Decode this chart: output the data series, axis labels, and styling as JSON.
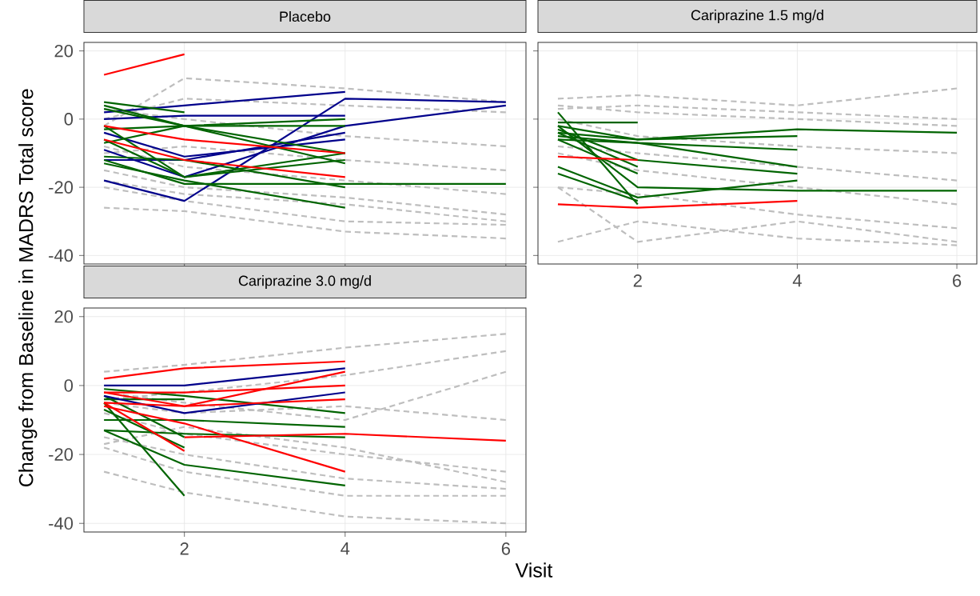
{
  "chart_data": [
    {
      "type": "line",
      "title": "Placebo",
      "x": [
        1,
        2,
        4,
        6
      ],
      "xlim": [
        0.75,
        6.25
      ],
      "ylim": [
        -42.5,
        22.5
      ],
      "xticks": [
        2,
        4,
        6
      ],
      "yticks": [
        -40,
        -20,
        0,
        20
      ],
      "tick_labels": "y",
      "grid": true,
      "marker": "none",
      "line_style": "solid",
      "series": [
        {
          "color": "#bebebe",
          "line_style": "dashed",
          "values": [
            -26,
            -27,
            -33,
            -35
          ]
        },
        {
          "color": "#bebebe",
          "line_style": "dashed",
          "values": [
            -20,
            -24,
            -30,
            -31
          ]
        },
        {
          "color": "#bebebe",
          "line_style": "dashed",
          "values": [
            -2,
            12,
            9,
            5
          ]
        },
        {
          "color": "#bebebe",
          "line_style": "dashed",
          "values": [
            0,
            6,
            4,
            2
          ]
        },
        {
          "color": "#bebebe",
          "line_style": "dashed",
          "values": [
            -15,
            -20,
            -23,
            -28
          ]
        },
        {
          "color": "#bebebe",
          "line_style": "dashed",
          "values": [
            -10,
            -8,
            -12,
            -15
          ]
        },
        {
          "color": "#bebebe",
          "line_style": "dashed",
          "values": [
            3,
            0,
            -5,
            -8
          ]
        },
        {
          "color": "#bebebe",
          "line_style": "dashed",
          "values": [
            -8,
            -14,
            -18,
            -22
          ]
        },
        {
          "color": "#bebebe",
          "line_style": "dashed",
          "values": [
            -18,
            -22,
            -25,
            -30
          ]
        },
        {
          "color": "#00008b",
          "values": [
            2,
            4,
            8,
            null
          ]
        },
        {
          "color": "#00008b",
          "values": [
            0,
            1,
            1,
            null
          ]
        },
        {
          "color": "#00008b",
          "values": [
            -18,
            -24,
            6,
            5
          ]
        },
        {
          "color": "#00008b",
          "values": [
            -4,
            -11,
            -6,
            null
          ]
        },
        {
          "color": "#00008b",
          "values": [
            -9,
            -17,
            -2,
            4
          ]
        },
        {
          "color": "#00008b",
          "values": [
            -12,
            -12,
            -4,
            null
          ]
        },
        {
          "color": "#006400",
          "values": [
            5,
            2,
            null,
            null
          ]
        },
        {
          "color": "#006400",
          "values": [
            4,
            -2,
            -10,
            null
          ]
        },
        {
          "color": "#006400",
          "values": [
            3,
            -2,
            0,
            null
          ]
        },
        {
          "color": "#006400",
          "values": [
            -3,
            -2,
            -2,
            null
          ]
        },
        {
          "color": "#006400",
          "values": [
            -7,
            -2,
            -13,
            null
          ]
        },
        {
          "color": "#006400",
          "values": [
            -2,
            -17,
            -10,
            null
          ]
        },
        {
          "color": "#006400",
          "values": [
            -12,
            -19,
            -19,
            -19
          ]
        },
        {
          "color": "#006400",
          "values": [
            -13,
            -18,
            -26,
            null
          ]
        },
        {
          "color": "#006400",
          "values": [
            -11,
            -12,
            -20,
            null
          ]
        },
        {
          "color": "#006400",
          "values": [
            -6,
            -17,
            -12,
            null
          ]
        },
        {
          "color": "#ff0000",
          "values": [
            13,
            19,
            null,
            null
          ]
        },
        {
          "color": "#ff0000",
          "values": [
            -2,
            -6,
            -10,
            null
          ]
        },
        {
          "color": "#ff0000",
          "values": [
            -6,
            -12,
            -17,
            null
          ]
        }
      ]
    },
    {
      "type": "line",
      "title": "Cariprazine 1.5 mg/d",
      "x": [
        1,
        2,
        4,
        6
      ],
      "xlim": [
        0.75,
        6.25
      ],
      "ylim": [
        -42.5,
        22.5
      ],
      "xticks": [
        2,
        4,
        6
      ],
      "yticks": [
        -40,
        -20,
        0,
        20
      ],
      "tick_labels": "x",
      "grid": true,
      "marker": "none",
      "line_style": "solid",
      "series": [
        {
          "color": "#bebebe",
          "line_style": "dashed",
          "values": [
            6,
            7,
            4,
            9
          ]
        },
        {
          "color": "#bebebe",
          "line_style": "dashed",
          "values": [
            -36,
            -30,
            -35,
            -37
          ]
        },
        {
          "color": "#bebebe",
          "line_style": "dashed",
          "values": [
            -20,
            -36,
            -30,
            -36
          ]
        },
        {
          "color": "#bebebe",
          "line_style": "dashed",
          "values": [
            4,
            2,
            0,
            -2
          ]
        },
        {
          "color": "#bebebe",
          "line_style": "dashed",
          "values": [
            0,
            -5,
            -8,
            -10
          ]
        },
        {
          "color": "#bebebe",
          "line_style": "dashed",
          "values": [
            -10,
            -15,
            -20,
            -25
          ]
        },
        {
          "color": "#bebebe",
          "line_style": "dashed",
          "values": [
            -20,
            -22,
            -28,
            -32
          ]
        },
        {
          "color": "#bebebe",
          "line_style": "dashed",
          "values": [
            -8,
            -10,
            -14,
            -18
          ]
        },
        {
          "color": "#bebebe",
          "line_style": "dashed",
          "values": [
            3,
            4,
            2,
            0
          ]
        },
        {
          "color": "#006400",
          "values": [
            -1,
            -1,
            null,
            null
          ]
        },
        {
          "color": "#006400",
          "values": [
            2,
            -25,
            null,
            null
          ]
        },
        {
          "color": "#006400",
          "values": [
            -14,
            -23,
            -18,
            null
          ]
        },
        {
          "color": "#006400",
          "values": [
            -16,
            -24,
            null,
            null
          ]
        },
        {
          "color": "#006400",
          "values": [
            -2,
            -20,
            -21,
            -21
          ]
        },
        {
          "color": "#006400",
          "values": [
            -2,
            -6,
            -3,
            -4
          ]
        },
        {
          "color": "#006400",
          "values": [
            -4,
            -6,
            -5,
            null
          ]
        },
        {
          "color": "#006400",
          "values": [
            -5,
            -7,
            -9,
            null
          ]
        },
        {
          "color": "#006400",
          "values": [
            -6,
            -7,
            -14,
            null
          ]
        },
        {
          "color": "#006400",
          "values": [
            -3,
            -12,
            -16,
            null
          ]
        },
        {
          "color": "#006400",
          "values": [
            -4,
            -14,
            null,
            null
          ]
        },
        {
          "color": "#006400",
          "values": [
            -6,
            -16,
            null,
            null
          ]
        },
        {
          "color": "#ff0000",
          "values": [
            -11,
            -12,
            null,
            null
          ]
        },
        {
          "color": "#ff0000",
          "values": [
            -25,
            -26,
            -24,
            null
          ]
        }
      ]
    },
    {
      "type": "line",
      "title": "Cariprazine 3.0 mg/d",
      "xlabel": "Visit",
      "ylabel": "Change from Baseline in MADRS Total score",
      "x": [
        1,
        2,
        4,
        6
      ],
      "xlim": [
        0.75,
        6.25
      ],
      "ylim": [
        -42.5,
        22.5
      ],
      "xticks": [
        2,
        4,
        6
      ],
      "yticks": [
        -40,
        -20,
        0,
        20
      ],
      "grid": true,
      "marker": "none",
      "line_style": "solid",
      "series": [
        {
          "color": "#bebebe",
          "line_style": "dashed",
          "values": [
            4,
            6,
            11,
            15
          ]
        },
        {
          "color": "#bebebe",
          "line_style": "dashed",
          "values": [
            -4,
            -2,
            3,
            10
          ]
        },
        {
          "color": "#bebebe",
          "line_style": "dashed",
          "values": [
            -25,
            -31,
            -38,
            -40
          ]
        },
        {
          "color": "#bebebe",
          "line_style": "dashed",
          "values": [
            -18,
            -25,
            -32,
            -32
          ]
        },
        {
          "color": "#bebebe",
          "line_style": "dashed",
          "values": [
            -17,
            -12,
            -18,
            -28
          ]
        },
        {
          "color": "#bebebe",
          "line_style": "dashed",
          "values": [
            -2,
            -5,
            -10,
            4
          ]
        },
        {
          "color": "#bebebe",
          "line_style": "dashed",
          "values": [
            -8,
            -14,
            -20,
            -25
          ]
        },
        {
          "color": "#bebebe",
          "line_style": "dashed",
          "values": [
            -15,
            -20,
            -27,
            -30
          ]
        },
        {
          "color": "#bebebe",
          "line_style": "dashed",
          "values": [
            -5,
            -8,
            -6,
            -10
          ]
        },
        {
          "color": "#006400",
          "values": [
            -1,
            -3,
            -8,
            null
          ]
        },
        {
          "color": "#006400",
          "values": [
            -4,
            -4,
            null,
            null
          ]
        },
        {
          "color": "#006400",
          "values": [
            -10,
            -10,
            -12,
            null
          ]
        },
        {
          "color": "#006400",
          "values": [
            -13,
            -14,
            -15,
            null
          ]
        },
        {
          "color": "#006400",
          "values": [
            -13,
            -23,
            -29,
            null
          ]
        },
        {
          "color": "#006400",
          "values": [
            -5,
            -32,
            null,
            null
          ]
        },
        {
          "color": "#006400",
          "values": [
            -7,
            -18,
            null,
            null
          ]
        },
        {
          "color": "#006400",
          "values": [
            -3,
            -15,
            null,
            null
          ]
        },
        {
          "color": "#00008b",
          "values": [
            0,
            0,
            5,
            null
          ]
        },
        {
          "color": "#00008b",
          "values": [
            -3,
            -8,
            -2,
            null
          ]
        },
        {
          "color": "#ff0000",
          "values": [
            2,
            5,
            7,
            null
          ]
        },
        {
          "color": "#ff0000",
          "values": [
            -2,
            -6,
            4,
            null
          ]
        },
        {
          "color": "#ff0000",
          "values": [
            -2,
            -2,
            0,
            null
          ]
        },
        {
          "color": "#ff0000",
          "values": [
            -5,
            -6,
            -4,
            null
          ]
        },
        {
          "color": "#ff0000",
          "values": [
            -6,
            -11,
            -25,
            null
          ]
        },
        {
          "color": "#ff0000",
          "values": [
            null,
            -15,
            -14,
            -16
          ]
        },
        {
          "color": "#ff0000",
          "values": [
            -5,
            -19,
            null,
            null
          ]
        }
      ]
    }
  ]
}
